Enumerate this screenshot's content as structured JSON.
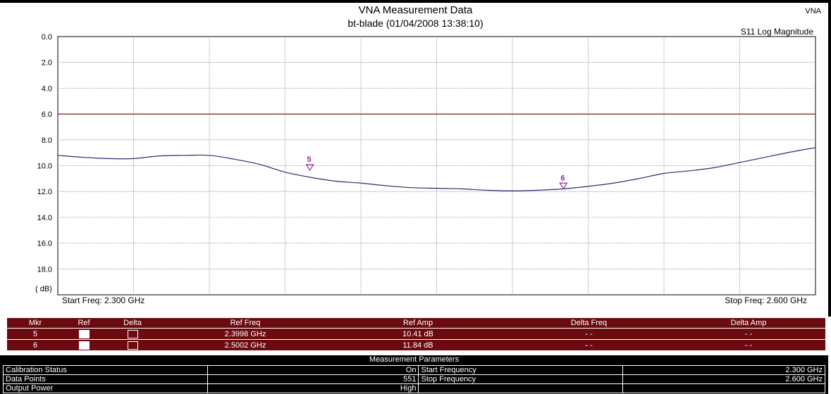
{
  "header": {
    "title": "VNA Measurement Data",
    "subtitle": "bt-blade (01/04/2008 13:38:10)",
    "corner_label": "VNA",
    "trace_label": "S11 Log Magnitude"
  },
  "chart_data": {
    "type": "line",
    "title": "VNA Measurement Data",
    "subtitle": "bt-blade (01/04/2008 13:38:10)",
    "xlabel": "",
    "ylabel": "( dB)",
    "x_range_ghz": [
      2.3,
      2.6
    ],
    "ylim": [
      0,
      20
    ],
    "y_inverted": true,
    "y_ticks": [
      "0.0",
      "2.0",
      "4.0",
      "6.0",
      "8.0",
      "10.0",
      "12.0",
      "14.0",
      "16.0",
      "18.0"
    ],
    "x_gridlines": 10,
    "grid": true,
    "reference_line_db": 6.0,
    "start_freq_label": "Start Freq: 2.300 GHz",
    "stop_freq_label": "Stop Freq: 2.600 GHz",
    "series": [
      {
        "x": [
          2.3,
          2.31,
          2.32,
          2.33,
          2.34,
          2.35,
          2.36,
          2.37,
          2.38,
          2.39,
          2.4,
          2.41,
          2.42,
          2.43,
          2.44,
          2.45,
          2.46,
          2.47,
          2.48,
          2.49,
          2.5,
          2.51,
          2.52,
          2.53,
          2.54,
          2.55,
          2.56,
          2.57,
          2.58,
          2.59,
          2.6
        ],
        "values": [
          9.2,
          9.35,
          9.45,
          9.45,
          9.25,
          9.2,
          9.2,
          9.5,
          9.9,
          10.5,
          10.9,
          11.2,
          11.35,
          11.55,
          11.7,
          11.75,
          11.8,
          11.9,
          11.95,
          11.9,
          11.8,
          11.6,
          11.35,
          11.0,
          10.6,
          10.4,
          10.15,
          9.75,
          9.35,
          8.95,
          8.6
        ]
      }
    ],
    "markers": [
      {
        "id": "5",
        "x": 2.3998,
        "y": 10.41
      },
      {
        "id": "6",
        "x": 2.5002,
        "y": 11.84
      }
    ],
    "colors": {
      "trace": "#2b2b6e",
      "reference": "#7a1a1a",
      "marker": "#a020a0",
      "grid": "#888888"
    }
  },
  "marker_table": {
    "headers": [
      "Mkr",
      "Ref",
      "Delta",
      "Ref Freq",
      "Ref Amp",
      "Delta Freq",
      "Delta Amp"
    ],
    "rows": [
      {
        "mkr": "5",
        "ref_checked": true,
        "delta_checked": false,
        "ref_freq": "2.3998 GHz",
        "ref_amp": "10.41 dB",
        "delta_freq": "- -",
        "delta_amp": "- -"
      },
      {
        "mkr": "6",
        "ref_checked": true,
        "delta_checked": false,
        "ref_freq": "2.5002 GHz",
        "ref_amp": "11.84 dB",
        "delta_freq": "- -",
        "delta_amp": "- -"
      }
    ]
  },
  "params": {
    "title": "Measurement Parameters",
    "rows": [
      {
        "label": "Calibration Status",
        "value": "On",
        "label2": "Start Frequency",
        "value2": "2.300 GHz"
      },
      {
        "label": "Data Points",
        "value": "551",
        "label2": "Stop Frequency",
        "value2": "2.600 GHz"
      },
      {
        "label": "Output Power",
        "value": "High",
        "label2": "",
        "value2": ""
      }
    ]
  }
}
